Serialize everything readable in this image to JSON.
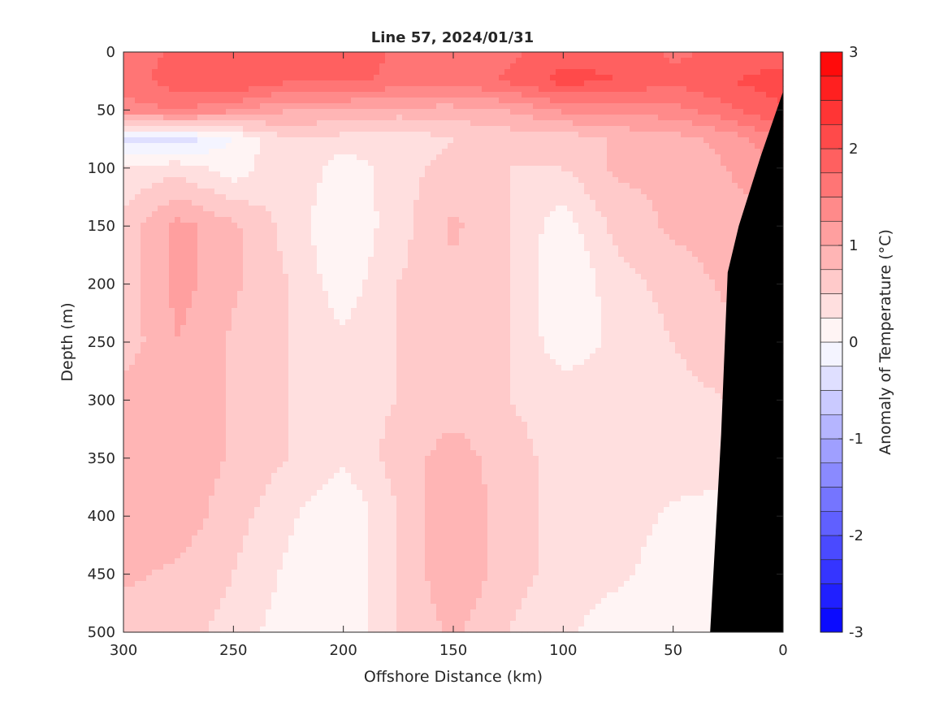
{
  "chart_data": {
    "type": "heatmap",
    "title": "Line 57, 2024/01/31",
    "xlabel": "Offshore Distance (km)",
    "ylabel": "Depth (m)",
    "colorbar_label": "Anomaly of Temperature (°C)",
    "xlim": [
      300,
      0
    ],
    "ylim": [
      500,
      0
    ],
    "x_reversed": true,
    "y_reversed": true,
    "x_ticks": [
      300,
      250,
      200,
      150,
      100,
      50,
      0
    ],
    "y_ticks": [
      0,
      50,
      100,
      150,
      200,
      250,
      300,
      350,
      400,
      450,
      500
    ],
    "colorbar_ticks": [
      3,
      2,
      1,
      0,
      -1,
      -2,
      -3
    ],
    "colorbar_range": [
      -3,
      3
    ],
    "contour_interval": 0.25,
    "grid": false,
    "x": [
      300,
      275,
      250,
      225,
      200,
      175,
      150,
      125,
      100,
      75,
      50,
      25,
      0
    ],
    "y": [
      0,
      25,
      50,
      75,
      100,
      150,
      200,
      250,
      300,
      350,
      400,
      450,
      500
    ],
    "z": [
      [
        1.6,
        1.8,
        1.8,
        1.8,
        1.9,
        1.7,
        1.6,
        1.7,
        1.9,
        1.9,
        1.7,
        1.8,
        1.9
      ],
      [
        1.6,
        1.9,
        2.0,
        1.8,
        1.8,
        1.7,
        1.6,
        1.8,
        2.1,
        2.0,
        1.8,
        2.0,
        2.1
      ],
      [
        1.4,
        1.5,
        1.3,
        1.0,
        1.0,
        0.9,
        0.9,
        1.0,
        1.3,
        1.3,
        1.4,
        1.7,
        2.0
      ],
      [
        -0.3,
        -0.4,
        0.0,
        0.5,
        0.4,
        0.3,
        0.5,
        0.6,
        0.6,
        0.8,
        0.9,
        1.1,
        1.5
      ],
      [
        0.3,
        0.4,
        0.1,
        0.5,
        0.1,
        0.4,
        0.6,
        0.5,
        0.5,
        0.8,
        0.8,
        1.0,
        1.2
      ],
      [
        0.6,
        1.1,
        0.8,
        0.4,
        0.0,
        0.4,
        0.8,
        0.5,
        0.1,
        0.6,
        0.8,
        0.9,
        1.0
      ],
      [
        0.6,
        1.1,
        0.8,
        0.5,
        0.1,
        0.5,
        0.7,
        0.5,
        0.0,
        0.4,
        0.6,
        0.8,
        0.9
      ],
      [
        0.6,
        1.0,
        0.7,
        0.5,
        0.3,
        0.5,
        0.6,
        0.5,
        0.1,
        0.3,
        0.5,
        0.7,
        0.8
      ],
      [
        0.9,
        1.0,
        0.7,
        0.5,
        0.4,
        0.5,
        0.6,
        0.5,
        0.4,
        0.4,
        0.4,
        0.5,
        0.6
      ],
      [
        1.0,
        1.0,
        0.7,
        0.5,
        0.3,
        0.6,
        0.9,
        0.6,
        0.4,
        0.4,
        0.4,
        0.4,
        0.4
      ],
      [
        0.9,
        0.9,
        0.6,
        0.3,
        0.0,
        0.5,
        1.0,
        0.6,
        0.4,
        0.4,
        0.2,
        0.1,
        0.1
      ],
      [
        0.8,
        0.7,
        0.5,
        0.2,
        0.0,
        0.5,
        1.0,
        0.6,
        0.4,
        0.3,
        0.1,
        0.0,
        0.0
      ],
      [
        0.6,
        0.6,
        0.4,
        0.1,
        0.0,
        0.5,
        0.8,
        0.5,
        0.3,
        0.1,
        0.0,
        0.0,
        0.0
      ]
    ],
    "zero_contour_color": "#000000",
    "bathymetry": {
      "color": "#000000",
      "x": [
        0,
        10,
        20,
        25,
        28,
        33,
        33,
        0
      ],
      "y": [
        35,
        90,
        150,
        190,
        330,
        500,
        500,
        500
      ]
    },
    "colors": {
      "min": "#0000ff",
      "mid": "#ffffff",
      "max": "#ff0000"
    }
  }
}
